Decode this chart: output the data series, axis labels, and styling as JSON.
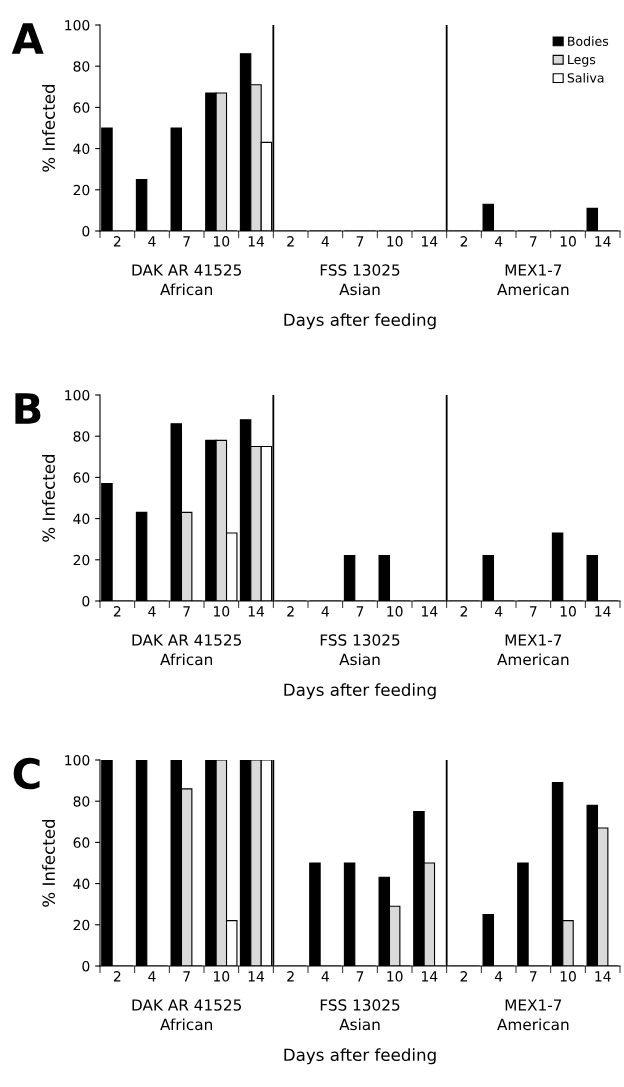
{
  "chart_data": [
    {
      "type": "bar",
      "title": "A",
      "ylabel": "% Infected",
      "xlabel": "Days after feeding",
      "categories": [
        "2",
        "4",
        "7",
        "10",
        "14",
        "2",
        "4",
        "7",
        "10",
        "14",
        "2",
        "4",
        "7",
        "10",
        "14"
      ],
      "ylim": [
        0,
        100
      ],
      "yticks": [
        0,
        20,
        40,
        60,
        80,
        100
      ],
      "grid": false,
      "legend": "top right",
      "annotations": [
        "DAK AR 41525\nAfrican",
        "FSS 13025\nAsian",
        "MEX1-7\nAmerican"
      ],
      "series": [
        {
          "name": "Bodies",
          "color": "#000000",
          "values": [
            50,
            25,
            50,
            67,
            86,
            0,
            0,
            0,
            0,
            0,
            0,
            13,
            0,
            0,
            11
          ]
        },
        {
          "name": "Legs",
          "color": "#d9d9d9",
          "values": [
            0,
            0,
            0,
            67,
            71,
            0,
            0,
            0,
            0,
            0,
            0,
            0,
            0,
            0,
            0
          ]
        },
        {
          "name": "Saliva",
          "color": "#ffffff",
          "values": [
            0,
            0,
            0,
            0,
            43,
            0,
            0,
            0,
            0,
            0,
            0,
            0,
            0,
            0,
            0
          ]
        }
      ]
    },
    {
      "type": "bar",
      "title": "B",
      "ylabel": "% Infected",
      "xlabel": "Days after feeding",
      "categories": [
        "2",
        "4",
        "7",
        "10",
        "14",
        "2",
        "4",
        "7",
        "10",
        "14",
        "2",
        "4",
        "7",
        "10",
        "14"
      ],
      "ylim": [
        0,
        100
      ],
      "yticks": [
        0,
        20,
        40,
        60,
        80,
        100
      ],
      "grid": false,
      "annotations": [
        "DAK AR 41525\nAfrican",
        "FSS 13025\nAsian",
        "MEX1-7\nAmerican"
      ],
      "series": [
        {
          "color": "#000000",
          "values": [
            57,
            43,
            86,
            78,
            88,
            0,
            0,
            22,
            22,
            0,
            0,
            22,
            0,
            33,
            22
          ]
        },
        {
          "color": "#d9d9d9",
          "values": [
            0,
            0,
            43,
            78,
            75,
            0,
            0,
            0,
            0,
            0,
            0,
            0,
            0,
            0,
            0
          ]
        },
        {
          "color": "#ffffff",
          "values": [
            0,
            0,
            0,
            33,
            75,
            0,
            0,
            0,
            0,
            0,
            0,
            0,
            0,
            0,
            0
          ]
        }
      ]
    },
    {
      "type": "bar",
      "title": "C",
      "ylabel": "% Infected",
      "xlabel": "Days after feeding",
      "categories": [
        "2",
        "4",
        "7",
        "10",
        "14",
        "2",
        "4",
        "7",
        "10",
        "14",
        "2",
        "4",
        "7",
        "10",
        "14"
      ],
      "ylim": [
        0,
        100
      ],
      "yticks": [
        0,
        20,
        40,
        60,
        80,
        100
      ],
      "grid": false,
      "annotations": [
        "DAK AR 41525\nAfrican",
        "FSS 13025\nAsian",
        "MEX1-7\nAmerican"
      ],
      "series": [
        {
          "color": "#000000",
          "values": [
            100,
            100,
            100,
            100,
            100,
            0,
            50,
            50,
            43,
            75,
            0,
            25,
            50,
            89,
            78
          ]
        },
        {
          "color": "#d9d9d9",
          "values": [
            0,
            0,
            86,
            100,
            100,
            0,
            0,
            0,
            29,
            50,
            0,
            0,
            0,
            22,
            67
          ]
        },
        {
          "color": "#ffffff",
          "values": [
            0,
            0,
            0,
            22,
            100,
            0,
            0,
            0,
            0,
            0,
            0,
            0,
            0,
            0,
            0
          ]
        }
      ]
    }
  ]
}
